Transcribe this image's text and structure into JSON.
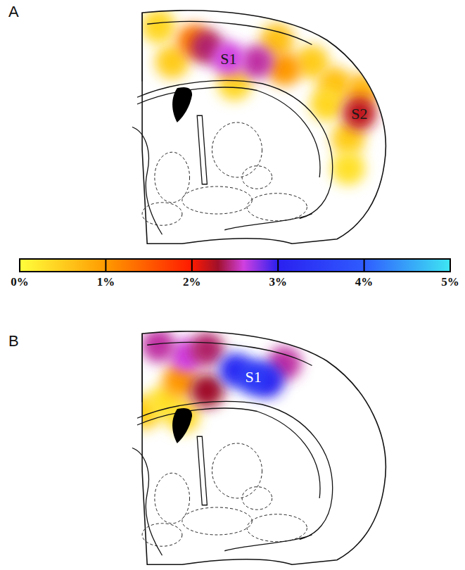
{
  "chart_data": {
    "type": "heatmap",
    "xlim": [
      0,
      100
    ],
    "ylim": [
      0,
      100
    ],
    "tick_labels": false,
    "colorbar": {
      "range": [
        0,
        5
      ],
      "ticks": [
        {
          "value": 0,
          "label": "0%"
        },
        {
          "value": 1,
          "label": "1%"
        },
        {
          "value": 2,
          "label": "2%"
        },
        {
          "value": 3,
          "label": "3%"
        },
        {
          "value": 4,
          "label": "4%"
        },
        {
          "value": 5,
          "label": "5%"
        }
      ]
    },
    "panels": [
      {
        "label": "A",
        "regions": [
          {
            "x": 8.5,
            "y": 6,
            "value": 0.4
          },
          {
            "x": 14,
            "y": 21.5,
            "value": 0.5
          },
          {
            "x": 56,
            "y": 12,
            "value": 0.6
          },
          {
            "x": 70,
            "y": 21.5,
            "value": 0.5
          },
          {
            "x": 79,
            "y": 31,
            "value": 0.6
          },
          {
            "x": 84.5,
            "y": 55,
            "value": 0.5
          },
          {
            "x": 84.5,
            "y": 68,
            "value": 0.3
          },
          {
            "x": 76,
            "y": 40,
            "value": 0.4
          },
          {
            "x": 90,
            "y": 34,
            "value": 0.7
          },
          {
            "x": 39,
            "y": 31,
            "value": 0.4
          },
          {
            "x": 22.5,
            "y": 12.3,
            "value": 1.2
          },
          {
            "x": 59,
            "y": 24.6,
            "value": 1.0
          },
          {
            "x": 28,
            "y": 15,
            "value": 2.4
          },
          {
            "x": 48,
            "y": 21.5,
            "value": 2.5
          },
          {
            "label": "S1",
            "x": 36.6,
            "y": 20,
            "value": 2.6
          },
          {
            "label": "S2",
            "x": 89,
            "y": 44,
            "value": 2.2
          }
        ]
      },
      {
        "label": "B",
        "regions": [
          {
            "x": 2.8,
            "y": 34.5,
            "value": 0.5
          },
          {
            "x": 18.3,
            "y": 36,
            "value": 0.4
          },
          {
            "x": 11,
            "y": 30,
            "value": 0.3
          },
          {
            "x": 17,
            "y": 20.6,
            "value": 1.0
          },
          {
            "x": 19.7,
            "y": 9.8,
            "value": 2.6
          },
          {
            "x": 8.5,
            "y": 5.2,
            "value": 2.5
          },
          {
            "x": 28,
            "y": 6.8,
            "value": 2.4
          },
          {
            "x": 59,
            "y": 13,
            "value": 2.5
          },
          {
            "x": 28,
            "y": 25,
            "value": 2.3
          },
          {
            "x": 39.4,
            "y": 16,
            "value": 3.2
          },
          {
            "x": 52,
            "y": 20.6,
            "value": 3.0
          },
          {
            "label": "S1",
            "x": 46.5,
            "y": 19,
            "value": 3.4
          }
        ]
      }
    ]
  }
}
